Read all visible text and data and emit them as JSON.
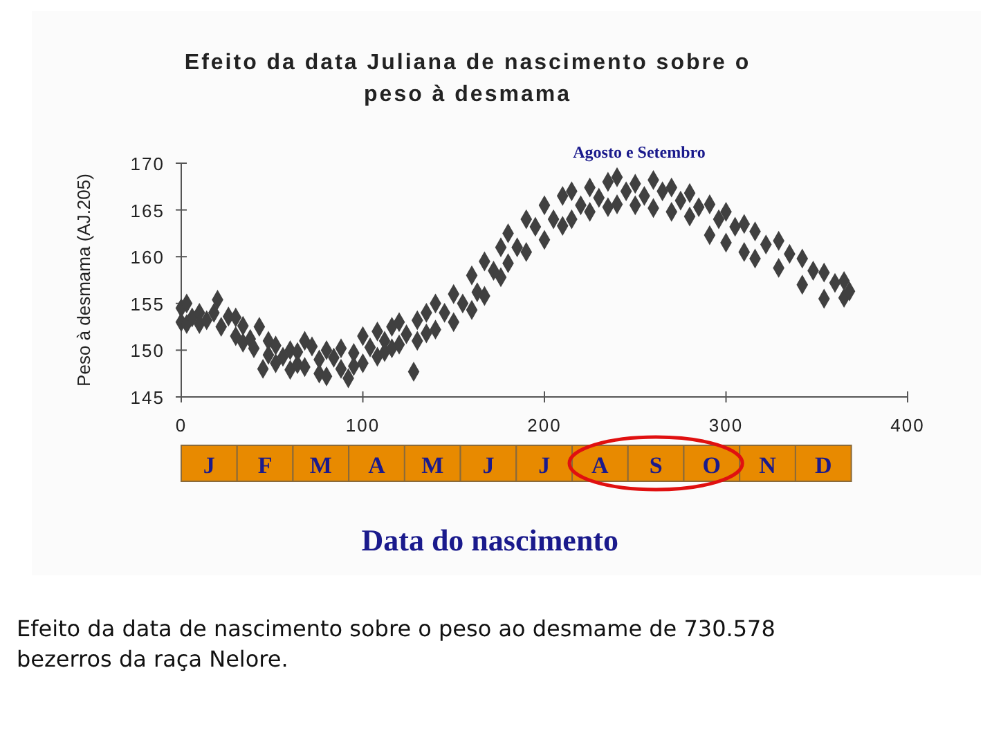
{
  "chart_data": {
    "type": "scatter",
    "title": "Efeito da data Juliana de nascimento sobre o\npeso à desmama",
    "xlabel": "Data do nascimento",
    "ylabel": "Peso à desmama (AJ.205)",
    "annotations": [
      "J",
      "F",
      "M",
      "A",
      "M",
      "J",
      "J",
      "A",
      "S",
      "O",
      "N",
      "D",
      "Agosto e Setembro",
      "Efeito da data de nascimento sobre o peso ao desmame de 730.578\nbezerros da raça Nelore."
    ],
    "xlim": [
      0,
      400
    ],
    "xticks": [
      0,
      100,
      200,
      300,
      400
    ],
    "ylim": [
      145,
      170
    ],
    "yticks": [
      145,
      150,
      155,
      160,
      165,
      170
    ],
    "marker": "diamond",
    "x": [
      0,
      0,
      3,
      3,
      6,
      10,
      10,
      14,
      18,
      20,
      22,
      26,
      30,
      30,
      34,
      34,
      38,
      40,
      43,
      45,
      48,
      48,
      52,
      52,
      56,
      60,
      60,
      64,
      64,
      68,
      68,
      72,
      76,
      76,
      80,
      80,
      84,
      88,
      88,
      92,
      95,
      95,
      100,
      100,
      104,
      108,
      108,
      112,
      112,
      116,
      116,
      120,
      120,
      124,
      128,
      130,
      130,
      135,
      135,
      140,
      140,
      145,
      150,
      150,
      155,
      160,
      160,
      163,
      167,
      167,
      172,
      176,
      176,
      180,
      180,
      185,
      190,
      190,
      195,
      200,
      200,
      205,
      210,
      210,
      215,
      215,
      220,
      225,
      225,
      230,
      235,
      235,
      240,
      240,
      245,
      250,
      250,
      255,
      260,
      260,
      265,
      270,
      270,
      275,
      280,
      280,
      285,
      291,
      291,
      296,
      300,
      300,
      305,
      310,
      310,
      316,
      316,
      322,
      329,
      329,
      335,
      342,
      342,
      348,
      354,
      354,
      360,
      365,
      365,
      368
    ],
    "series": [
      {
        "color": "#404040",
        "values": [
          154.5,
          153,
          155,
          152.8,
          153.5,
          154,
          152.8,
          153.2,
          154,
          155.4,
          152.5,
          153.6,
          153.5,
          151.5,
          152.6,
          150.8,
          151.2,
          150.2,
          152.5,
          148,
          151,
          149.5,
          150.5,
          148.6,
          149.3,
          150,
          147.9,
          149.8,
          148.5,
          151,
          148.2,
          150.4,
          149,
          147.5,
          150,
          147.2,
          149.2,
          150.2,
          148,
          147,
          149.7,
          148.3,
          151.5,
          148.6,
          150.3,
          152,
          149.3,
          151,
          149.8,
          152.5,
          150.2,
          153,
          150.6,
          151.7,
          147.7,
          153.2,
          151,
          154,
          151.8,
          155,
          152.2,
          154,
          156,
          153,
          155,
          158,
          154.3,
          156.2,
          159.5,
          155.8,
          158.5,
          161,
          157.8,
          162.5,
          159.3,
          161,
          164,
          160.5,
          163.2,
          165.5,
          161.8,
          164,
          166.5,
          163.3,
          167,
          164,
          165.5,
          167.4,
          164.8,
          166.3,
          168,
          165.3,
          168.5,
          165.6,
          167,
          167.8,
          165.5,
          166.5,
          168.2,
          165.2,
          167,
          167.4,
          164.8,
          166,
          166.8,
          164.3,
          165.3,
          165.6,
          162.3,
          164,
          164.8,
          161.5,
          163.2,
          163.5,
          160.5,
          162.7,
          159.8,
          161.3,
          161.7,
          158.8,
          160.3,
          159.8,
          157,
          158.5,
          158.3,
          155.5,
          157.2,
          157.4,
          155.6,
          156.3
        ]
      }
    ]
  }
}
